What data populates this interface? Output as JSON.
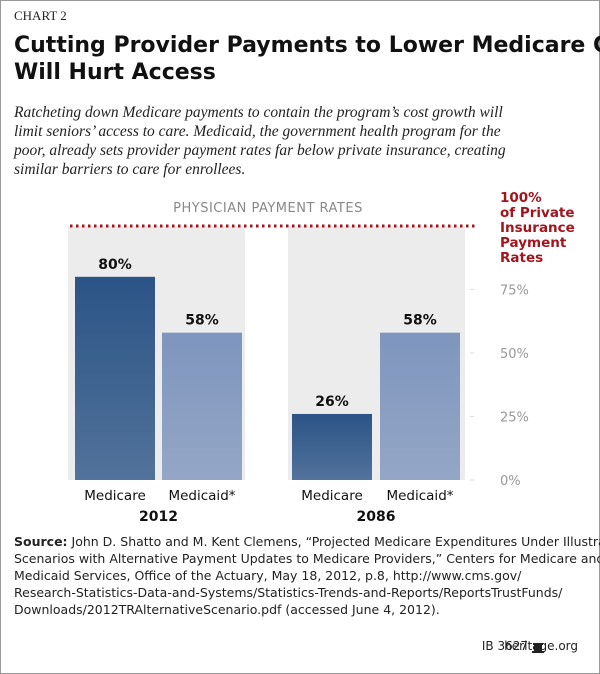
{
  "chart_data": {
    "type": "bar",
    "kicker": "CHART 2",
    "title": [
      "Cutting Provider Payments to Lower Medicare Costs",
      "Will Hurt Access"
    ],
    "subtitle": [
      "Ratcheting down Medicare payments to contain the program’s cost growth will",
      "limit seniors’ access to care. Medicaid, the government health program for the",
      "poor, already sets provider payment rates far below private insurance, creating",
      "similar barriers to care for enrollees."
    ],
    "annotation": "PHYSICIAN PAYMENT RATES",
    "categories": [
      "Medicare",
      "Medicaid*",
      "Medicare",
      "Medicaid*"
    ],
    "groups": [
      "2012",
      "2086"
    ],
    "values": [
      80,
      58,
      26,
      58
    ],
    "value_labels": [
      "80%",
      "58%",
      "26%",
      "58%"
    ],
    "colors": [
      "#2b5486",
      "#7e95bd",
      "#2b5486",
      "#7e95bd"
    ],
    "ylim": [
      0,
      100
    ],
    "yticks": [
      {
        "value": 0,
        "label": "0%"
      },
      {
        "value": 25,
        "label": "25%"
      },
      {
        "value": 50,
        "label": "50%"
      },
      {
        "value": 75,
        "label": "75%"
      }
    ],
    "reference_line": {
      "value": 100,
      "color": "#a3141c",
      "label": [
        "100%",
        "of Private",
        "Insurance",
        "Payment",
        "Rates"
      ]
    },
    "source_label": "Source:",
    "source": [
      "John D. Shatto and M. Kent Clemens, “Projected Medicare Expenditures Under Illustrative",
      "Scenarios with Alternative Payment Updates to Medicare Providers,” Centers for Medicare and",
      "Medicaid Services, Office of the Actuary, May 18, 2012, p.8, http://www.cms.gov/",
      "Research-Statistics-Data-and-Systems/Statistics-Trends-and-Reports/ReportsTrustFunds/",
      "Downloads/2012TRAlternativeScenario.pdf (accessed June 4, 2012)."
    ],
    "footer_id": "IB 3627",
    "footer_site": "heritage.org"
  }
}
